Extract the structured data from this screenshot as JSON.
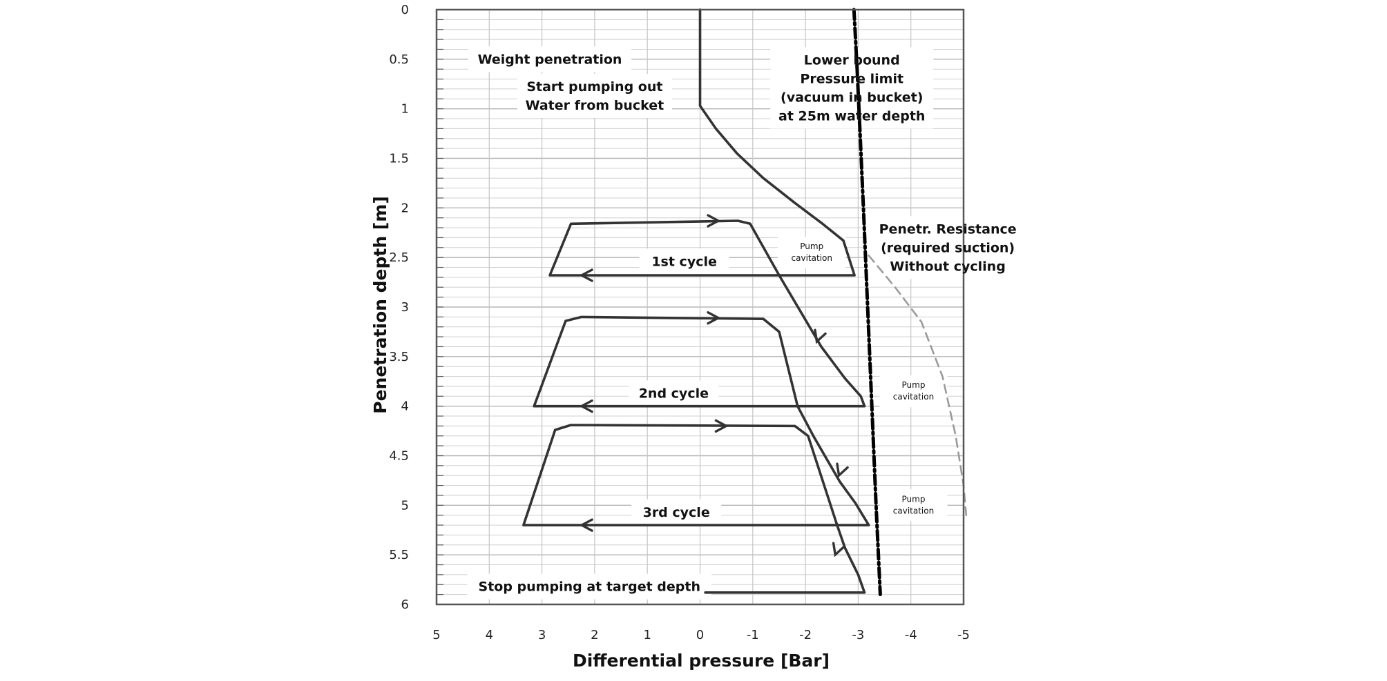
{
  "chart_data": {
    "type": "line",
    "title": "",
    "xlabel": "Differential pressure [Bar]",
    "ylabel": "Penetration depth [m]",
    "xlim": [
      5,
      -5
    ],
    "ylim": [
      0,
      6
    ],
    "x_reversed": true,
    "y_reversed": true,
    "x_ticks": [
      5,
      4,
      3,
      2,
      1,
      0,
      -1,
      -2,
      -3,
      -4,
      -5
    ],
    "x_tick_labels": [
      "5",
      "4",
      "3",
      "2",
      "1",
      "0",
      "-1",
      "-2",
      "-3",
      "-4",
      "-5"
    ],
    "y_ticks": [
      0,
      0.5,
      1,
      1.5,
      2,
      2.5,
      3,
      3.5,
      4,
      4.5,
      5,
      5.5,
      6
    ],
    "y_tick_labels": [
      "0",
      "0.5",
      "1",
      "1.5",
      "2",
      "2.5",
      "3",
      "3.5",
      "4",
      "4.5",
      "5",
      "5.5",
      "6"
    ],
    "grid": true,
    "series": [
      {
        "style": "solid",
        "color": "#333333",
        "points": [
          [
            0,
            0
          ],
          [
            0,
            0.97
          ],
          [
            -0.3,
            1.2
          ],
          [
            -0.7,
            1.45
          ],
          [
            -1.2,
            1.7
          ],
          [
            -1.8,
            1.95
          ],
          [
            -2.3,
            2.15
          ],
          [
            -2.72,
            2.33
          ],
          [
            -2.93,
            2.68
          ],
          [
            -0.72,
            2.68
          ],
          [
            -2.93,
            2.68
          ],
          [
            2.85,
            2.68
          ],
          [
            2.45,
            2.16
          ],
          [
            -0.72,
            2.13
          ],
          [
            -0.95,
            2.16
          ],
          [
            -1.5,
            2.68
          ],
          [
            -1.9,
            3.04
          ],
          [
            -2.3,
            3.4
          ],
          [
            -2.75,
            3.72
          ],
          [
            -3.05,
            3.9
          ],
          [
            -3.12,
            4.0
          ],
          [
            3.15,
            4.0
          ],
          [
            2.55,
            3.14
          ],
          [
            2.25,
            3.1
          ],
          [
            -1.2,
            3.12
          ],
          [
            -1.5,
            3.25
          ],
          [
            -1.85,
            4.0
          ],
          [
            -2.15,
            4.3
          ],
          [
            -2.65,
            4.76
          ],
          [
            -2.95,
            4.98
          ],
          [
            -3.2,
            5.2
          ],
          [
            3.35,
            5.2
          ],
          [
            2.75,
            4.24
          ],
          [
            2.45,
            4.19
          ],
          [
            -1.8,
            4.2
          ],
          [
            -2.05,
            4.3
          ],
          [
            -2.6,
            5.2
          ],
          [
            -2.75,
            5.43
          ],
          [
            -3.0,
            5.7
          ],
          [
            -3.12,
            5.88
          ],
          [
            -3.0,
            5.88
          ],
          [
            -0.1,
            5.88
          ]
        ]
      },
      {
        "name": "Lower bound Pressure limit (vacuum in bucket) at 25m water depth",
        "style": "dash-dot",
        "color": "#000000",
        "points": [
          [
            -2.92,
            0
          ],
          [
            -2.98,
            0.6
          ],
          [
            -3.04,
            1.3
          ],
          [
            -3.1,
            2.0
          ],
          [
            -3.18,
            3.0
          ],
          [
            -3.26,
            4.0
          ],
          [
            -3.34,
            5.0
          ],
          [
            -3.42,
            5.9
          ]
        ]
      },
      {
        "name": "Penetr. Resistance (required suction) Without cycling",
        "style": "dashed",
        "color": "#9a9a9a",
        "points": [
          [
            -3.2,
            2.48
          ],
          [
            -3.7,
            2.8
          ],
          [
            -4.2,
            3.15
          ],
          [
            -4.6,
            3.7
          ],
          [
            -4.85,
            4.3
          ],
          [
            -5.0,
            4.8
          ],
          [
            -5.05,
            5.1
          ]
        ]
      }
    ],
    "arrows": [
      {
        "x": -0.15,
        "y": 2.13,
        "direction": "right"
      },
      {
        "x": 2.05,
        "y": 2.68,
        "direction": "left"
      },
      {
        "x": -0.15,
        "y": 3.11,
        "direction": "right"
      },
      {
        "x": 2.05,
        "y": 4.0,
        "direction": "left"
      },
      {
        "x": -0.3,
        "y": 4.2,
        "direction": "right"
      },
      {
        "x": 2.05,
        "y": 5.2,
        "direction": "left"
      },
      {
        "x": -2.28,
        "y": 3.25,
        "direction": "down"
      },
      {
        "x": -2.7,
        "y": 4.6,
        "direction": "down"
      },
      {
        "x": -2.63,
        "y": 5.4,
        "direction": "down"
      }
    ],
    "annotations": [
      {
        "lines": [
          "Weight penetration"
        ],
        "x": 2.85,
        "y": 0.5,
        "size": "large"
      },
      {
        "lines": [
          "Start pumping out",
          "Water from bucket"
        ],
        "x": 2.0,
        "y": 0.87,
        "size": "large"
      },
      {
        "lines": [
          "Lower bound",
          "Pressure limit",
          "(vacuum in bucket)",
          "at 25m water depth"
        ],
        "x": -2.88,
        "y": 0.79,
        "size": "large"
      },
      {
        "lines": [
          "1st cycle"
        ],
        "x": 0.3,
        "y": 2.54,
        "size": "large"
      },
      {
        "lines": [
          "Pump",
          "cavitation"
        ],
        "x": -2.12,
        "y": 2.45,
        "size": "small"
      },
      {
        "lines": [
          "Penetr. Resistance",
          "(required suction)",
          "Without cycling"
        ],
        "x": -4.7,
        "y": 2.4,
        "size": "large"
      },
      {
        "lines": [
          "2nd cycle"
        ],
        "x": 0.5,
        "y": 3.87,
        "size": "large"
      },
      {
        "lines": [
          "Pump",
          "cavitation"
        ],
        "x": -4.05,
        "y": 3.85,
        "size": "small"
      },
      {
        "lines": [
          "3rd cycle"
        ],
        "x": 0.45,
        "y": 5.07,
        "size": "large"
      },
      {
        "lines": [
          "Pump",
          "cavitation"
        ],
        "x": -4.05,
        "y": 5.0,
        "size": "small"
      },
      {
        "lines": [
          "Stop pumping at target depth"
        ],
        "x": 2.1,
        "y": 5.82,
        "size": "large"
      }
    ]
  }
}
